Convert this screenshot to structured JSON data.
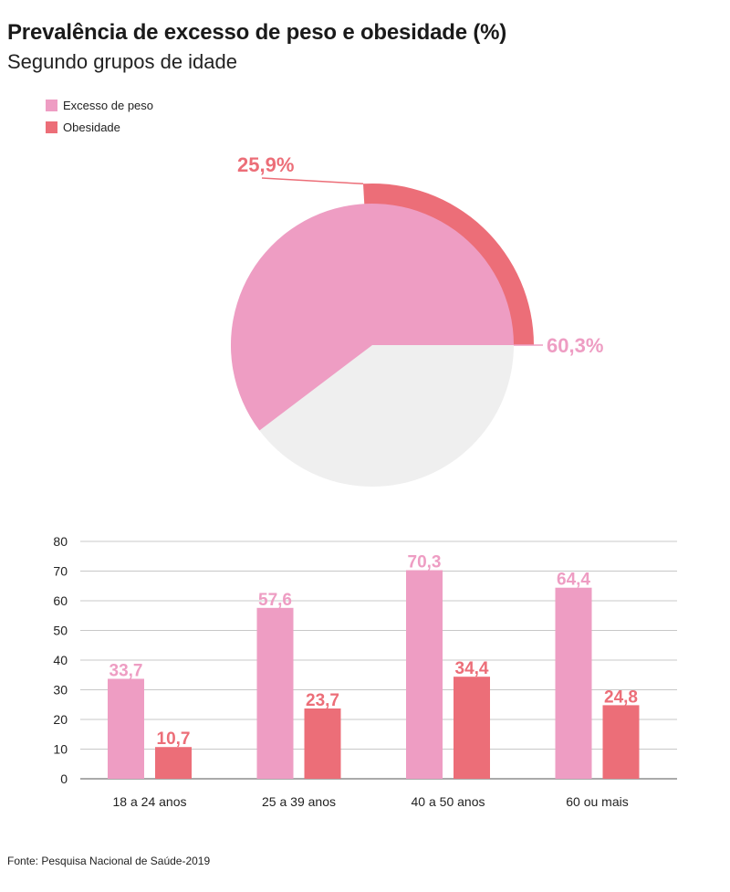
{
  "title": "Prevalência de excesso de peso e obesidade (%)",
  "subtitle": "Segundo grupos de idade",
  "legend": [
    {
      "label": "Excesso de peso",
      "color": "#ee9dc3"
    },
    {
      "label": "Obesidade",
      "color": "#ec6e78"
    }
  ],
  "source": "Fonte: Pesquisa Nacional de Saúde-2019",
  "chart_data": [
    {
      "type": "pie",
      "slices": [
        {
          "name": "Excesso de peso",
          "value": 60.3,
          "label": "60,3%",
          "color": "#ee9dc3"
        },
        {
          "name": "Obesidade",
          "value": 25.9,
          "label": "25,9%",
          "color": "#ec6e78"
        }
      ],
      "remainder_color": "#efefef"
    },
    {
      "type": "bar",
      "categories": [
        "18 a 24 anos",
        "25 a 39 anos",
        "40 a 50 anos",
        "60 ou mais"
      ],
      "series": [
        {
          "name": "Excesso de peso",
          "values": [
            33.7,
            57.6,
            70.3,
            64.4
          ],
          "labels": [
            "33,7",
            "57,6",
            "70,3",
            "64,4"
          ],
          "color": "#ee9dc3"
        },
        {
          "name": "Obesidade",
          "values": [
            10.7,
            23.7,
            34.4,
            24.8
          ],
          "labels": [
            "10,7",
            "23,7",
            "34,4",
            "24,8"
          ],
          "color": "#ec6e78"
        }
      ],
      "ylim": [
        0,
        80
      ],
      "yticks": [
        0,
        10,
        20,
        30,
        40,
        50,
        60,
        70,
        80
      ],
      "grid": true
    }
  ]
}
